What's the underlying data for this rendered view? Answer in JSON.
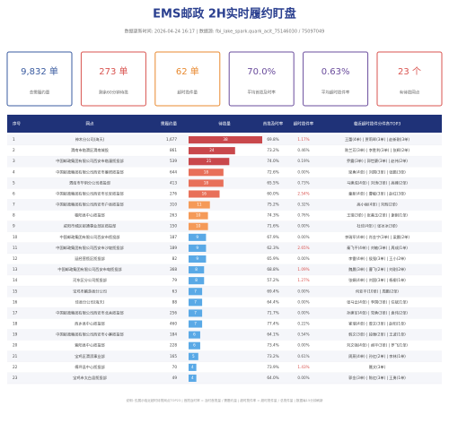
{
  "header": {
    "title": "EMS邮政 2H实时履约盯盘",
    "subtitle": "数据更新时间: 2026-04-24 16:17  |  数据源: fbi_lake_spark.quark_acit_75146030 / 75097049"
  },
  "cards": [
    {
      "value": "9,832 单",
      "label": "总需履约量",
      "color": "#3a5ba0"
    },
    {
      "value": "273 单",
      "label": "剩余60分钟待揽",
      "color": "#d9534f"
    },
    {
      "value": "62 单",
      "label": "超时揽件量",
      "color": "#e8892f"
    },
    {
      "value": "70.0%",
      "label": "平均首揽及时率",
      "color": "#6a4c9c"
    },
    {
      "value": "0.63%",
      "label": "平均超时揽件率",
      "color": "#6a4c9c"
    },
    {
      "value": "23 个",
      "label": "有待揽网点",
      "color": "#d9534f"
    }
  ],
  "table": {
    "columns": [
      "序号",
      "网点",
      "需履约量",
      "待揽量",
      "首揽及时率",
      "超时揽件率",
      "临近超时揽件分件各TOP3"
    ],
    "rows": [
      {
        "no": "1",
        "name": "神木分公司(海天)",
        "demand": "1,677",
        "pending": 38,
        "ontime": "69.8%",
        "late": "1.17%",
        "top3": "王蕾(4单) | 贾莉晖(3单) | 赵新刚(3单)",
        "bar_color": "#c9484c",
        "late_color": "#d9534f"
      },
      {
        "no": "2",
        "name": "渭南市临渭区渭南城投",
        "demand": "861",
        "pending": 24,
        "ontime": "73.2%",
        "late": "0.46%",
        "top3": "陈兰芳(3单) | 李胜利(3单) | 张辉(2单)",
        "bar_color": "#c9484c",
        "late_color": "#555"
      },
      {
        "no": "3",
        "name": "中国邮政集团有限公司西安市临潼揽投部",
        "demand": "539",
        "pending": 21,
        "ontime": "74.0%",
        "late": "0.19%",
        "top3": "乔震(3单) | 郭世豪(3单) | 赵伟(2单)",
        "bar_color": "#c9484c",
        "late_color": "#555"
      },
      {
        "no": "4",
        "name": "中国邮政集团有限公司西安市雁塔揽投部",
        "demand": "644",
        "pending": 18,
        "ontime": "72.6%",
        "late": "0.00%",
        "top3": "梁勇(4单) | 刘国(3单) | 张鹏(3单)",
        "bar_color": "#e8705a",
        "late_color": "#555"
      },
      {
        "no": "5",
        "name": "渭南市华阴分公司揽投部",
        "demand": "413",
        "pending": 18,
        "ontime": "65.5%",
        "late": "0.73%",
        "top3": "马建成(4单) | 刘涛(3单) | 高峰(2单)",
        "bar_color": "#e8705a",
        "late_color": "#555"
      },
      {
        "no": "6",
        "name": "中国邮政集团有限公司西安市长安揽投部",
        "demand": "276",
        "pending": 16,
        "ontime": "60.0%",
        "late": "2.54%",
        "top3": "童新(4单) | 曹敏(3单) | 赵红(3单)",
        "bar_color": "#e8705a",
        "late_color": "#d9534f"
      },
      {
        "no": "7",
        "name": "中国邮政集团有限公司西安市户县揽投部",
        "demand": "310",
        "pending": 11,
        "ontime": "75.2%",
        "late": "0.32%",
        "top3": "高小丽(4单) | 刘辉(2单)",
        "bar_color": "#f59a58",
        "late_color": "#555"
      },
      {
        "no": "8",
        "name": "榆阳县中心揽投部",
        "demand": "263",
        "pending": 10,
        "ontime": "74.3%",
        "late": "0.76%",
        "top3": "王瑞(3单) | 张美玉(2单) | 谢刚(1单)",
        "bar_color": "#f59a58",
        "late_color": "#555"
      },
      {
        "no": "9",
        "name": "咸阳市城区邮通事业部区揽投部",
        "demand": "150",
        "pending": 10,
        "ontime": "71.6%",
        "late": "0.00%",
        "top3": "杜佳(4单) | 张冰冰(3单)",
        "bar_color": "#f59a58",
        "late_color": "#555"
      },
      {
        "no": "10",
        "name": "中国邮政集团有限公司西安市揽投部",
        "demand": "187",
        "pending": 9,
        "ontime": "67.9%",
        "late": "0.00%",
        "top3": "李瑞军(4单) | 肖金宁(3单) | 梁晨(2单)",
        "bar_color": "#5aa9e6",
        "late_color": "#555"
      },
      {
        "no": "11",
        "name": "中国邮政集团有限公司西安市沙坡揽投部",
        "demand": "189",
        "pending": 9,
        "ontime": "62.3%",
        "late": "2.65%",
        "top3": "秦飞平(4单) | 刘敏(3单) | 周成(1单)",
        "bar_color": "#5aa9e6",
        "late_color": "#d9534f"
      },
      {
        "no": "12",
        "name": "延经营揽区揽投部",
        "demand": "82",
        "pending": 9,
        "ontime": "65.9%",
        "late": "0.00%",
        "top3": "李雷(4单) | 侯强(3单) | 王小(2单)",
        "bar_color": "#5aa9e6",
        "late_color": "#555"
      },
      {
        "no": "13",
        "name": "中国邮政集团有限公司西安市电揽投部",
        "demand": "368",
        "pending": 8,
        "ontime": "68.8%",
        "late": "1.09%",
        "top3": "魏晨(3单) | 曹飞(2单) | 刘刚(2单)",
        "bar_color": "#5aa9e6",
        "late_color": "#d9534f"
      },
      {
        "no": "14",
        "name": "河东区分公司揽投部",
        "demand": "79",
        "pending": 8,
        "ontime": "57.2%",
        "late": "1.27%",
        "top3": "张娟(4单) | 刘国(3单) | 杨柳(1单)",
        "bar_color": "#5aa9e6",
        "late_color": "#d9534f"
      },
      {
        "no": "15",
        "name": "宝鸡市麟游县分公司",
        "demand": "63",
        "pending": 7,
        "ontime": "69.4%",
        "late": "0.00%",
        "top3": "何亚平(10单) | 周鹏(2单)",
        "bar_color": "#5aa9e6",
        "late_color": "#555"
      },
      {
        "no": "16",
        "name": "佳县分公司(海天)",
        "demand": "88",
        "pending": 7,
        "ontime": "64.4%",
        "late": "0.00%",
        "top3": "张马云(4单) | 李国(3单) | 任斌(1单)",
        "bar_color": "#5aa9e6",
        "late_color": "#555"
      },
      {
        "no": "17",
        "name": "中国邮政集团有限公司西安市北关揽投部",
        "demand": "256",
        "pending": 7,
        "ontime": "71.7%",
        "late": "0.00%",
        "top3": "孙建军(4单) | 党勇(3单) | 袁伟(2单)",
        "bar_color": "#5aa9e6",
        "late_color": "#555"
      },
      {
        "no": "18",
        "name": "西乡县中心揽投部",
        "demand": "460",
        "pending": 7,
        "ontime": "77.4%",
        "late": "0.22%",
        "top3": "崔瑞(4单) | 曾文(3单) | 赵阳(1单)",
        "bar_color": "#5aa9e6",
        "late_color": "#555"
      },
      {
        "no": "19",
        "name": "中国邮政集团有限公司西安市小寨揽投部",
        "demand": "184",
        "pending": 6,
        "ontime": "64.1%",
        "late": "0.54%",
        "top3": "韩文(3单) | 段雅(2单) | 王波(1单)",
        "bar_color": "#5aa9e6",
        "late_color": "#555"
      },
      {
        "no": "20",
        "name": "紫阳县中心揽投部",
        "demand": "228",
        "pending": 6,
        "ontime": "73.4%",
        "late": "0.00%",
        "top3": "刘文强(4单) | 胡平(3单) | 罗飞(1单)",
        "bar_color": "#5aa9e6",
        "late_color": "#555"
      },
      {
        "no": "21",
        "name": "宝鸡区渭滨事业部",
        "demand": "165",
        "pending": 5,
        "ontime": "73.2%",
        "late": "0.61%",
        "top3": "周燕(4单) | 孙红(2单) | 李林(1单)",
        "bar_color": "#5aa9e6",
        "late_color": "#555"
      },
      {
        "no": "22",
        "name": "傅坪县中心揽投部",
        "demand": "70",
        "pending": 4,
        "ontime": "73.9%",
        "late": "1.43%",
        "top3": "聂文(3单)",
        "bar_color": "#5aa9e6",
        "late_color": "#d9534f"
      },
      {
        "no": "23",
        "name": "宝鸡市太白县揽投部",
        "demand": "49",
        "pending": 4,
        "ontime": "64.0%",
        "late": "0.00%",
        "top3": "郭金(3单) | 陈红(3单) | 王勇(1单)",
        "bar_color": "#5aa9e6",
        "late_color": "#555"
      }
    ]
  },
  "footer": "说明: 仅展示临近超时待揽网点TOP23  |  首揽及时率 = 及时首揽量 / 需履约量  |  超时揽件率 = 超时揽件量 / 总揽件量  |  数据每15分钟刷新"
}
